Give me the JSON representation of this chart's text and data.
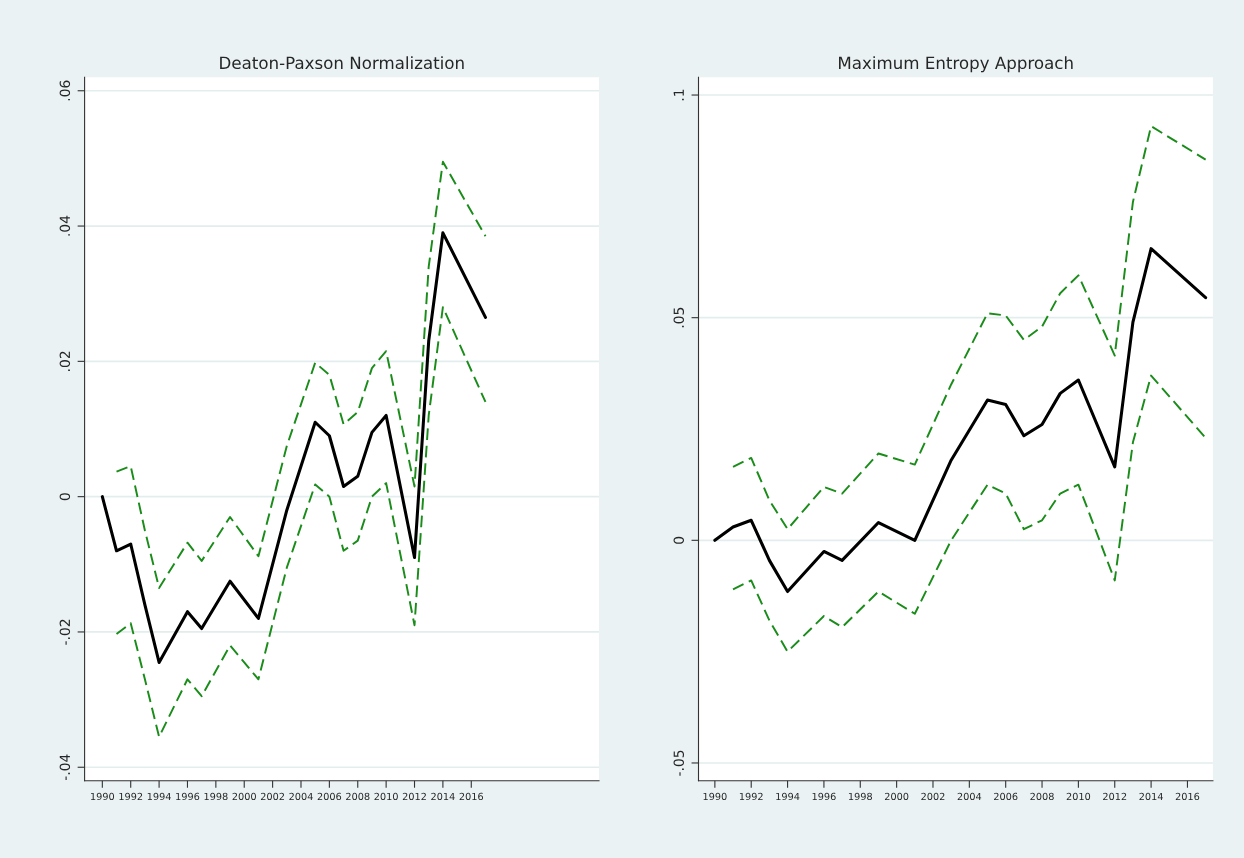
{
  "chart_data": [
    {
      "type": "line",
      "title": "Deaton-Paxson Normalization",
      "xlim": [
        1988.75,
        2025
      ],
      "xticks": [
        1990,
        1992,
        1994,
        1996,
        1998,
        2000,
        2002,
        2004,
        2006,
        2008,
        2010,
        2012,
        2014,
        2016
      ],
      "ylim": [
        -0.042,
        0.062
      ],
      "yticks": [
        {
          "value": -0.04,
          "label": "-.04"
        },
        {
          "value": -0.02,
          "label": "-.02"
        },
        {
          "value": 0,
          "label": "0"
        },
        {
          "value": 0.02,
          "label": ".02"
        },
        {
          "value": 0.04,
          "label": ".04"
        },
        {
          "value": 0.06,
          "label": ".06"
        }
      ],
      "grid": "y",
      "legend": false,
      "series": [
        {
          "color": "#000000",
          "line_style": "solid",
          "x": [
            1990,
            1991,
            1992,
            1993,
            1994,
            1996,
            1997,
            1999,
            2001,
            2003,
            2005,
            2006,
            2007,
            2008,
            2009,
            2010,
            2012,
            2013,
            2014,
            2017
          ],
          "values": [
            0,
            -0.008,
            -0.007,
            -0.016,
            -0.0245,
            -0.017,
            -0.0195,
            -0.0125,
            -0.018,
            -0.002,
            0.011,
            0.009,
            0.0015,
            0.003,
            0.0095,
            0.012,
            -0.009,
            0.023,
            0.039,
            0.0265
          ]
        },
        {
          "color": "#1a8c1a",
          "line_style": "dashed",
          "x": [
            1991,
            1992,
            1993,
            1994,
            1996,
            1997,
            1999,
            2001,
            2003,
            2005,
            2006,
            2007,
            2008,
            2009,
            2010,
            2012,
            2013,
            2014,
            2017
          ],
          "values": [
            0.0037,
            0.0045,
            -0.005,
            -0.0135,
            -0.0068,
            -0.0095,
            -0.003,
            -0.0088,
            0.0075,
            0.0198,
            0.018,
            0.0107,
            0.0125,
            0.019,
            0.0215,
            0.0015,
            0.034,
            0.0495,
            0.0385
          ]
        },
        {
          "color": "#1a8c1a",
          "line_style": "dashed",
          "x": [
            1991,
            1992,
            1993,
            1994,
            1996,
            1997,
            1999,
            2001,
            2003,
            2005,
            2006,
            2007,
            2008,
            2009,
            2010,
            2012,
            2013,
            2014,
            2017
          ],
          "values": [
            -0.0203,
            -0.0187,
            -0.027,
            -0.0355,
            -0.027,
            -0.0295,
            -0.022,
            -0.027,
            -0.0105,
            0.0018,
            0,
            -0.008,
            -0.0065,
            0,
            0.002,
            -0.019,
            0.012,
            0.028,
            0.014
          ]
        }
      ]
    },
    {
      "type": "line",
      "title": "Maximum Entropy Approach",
      "xlim": [
        1989.1,
        2017.4
      ],
      "xticks": [
        1990,
        1992,
        1994,
        1996,
        1998,
        2000,
        2002,
        2004,
        2006,
        2008,
        2010,
        2012,
        2014,
        2016
      ],
      "ylim": [
        -0.054,
        0.104
      ],
      "yticks": [
        {
          "value": -0.05,
          "label": "-.05"
        },
        {
          "value": 0,
          "label": "0"
        },
        {
          "value": 0.05,
          "label": ".05"
        },
        {
          "value": 0.1,
          "label": ".1"
        }
      ],
      "grid": "y",
      "legend": false,
      "series": [
        {
          "color": "#000000",
          "line_style": "solid",
          "x": [
            1990,
            1991,
            1992,
            1993,
            1994,
            1996,
            1997,
            1999,
            2001,
            2003,
            2005,
            2006,
            2007,
            2008,
            2009,
            2010,
            2012,
            2013,
            2014,
            2017
          ],
          "values": [
            0,
            0.003,
            0.0045,
            -0.0045,
            -0.0115,
            -0.0025,
            -0.0045,
            0.004,
            0,
            0.018,
            0.0315,
            0.0305,
            0.0235,
            0.026,
            0.033,
            0.036,
            0.0165,
            0.049,
            0.0655,
            0.0545
          ]
        },
        {
          "color": "#1a8c1a",
          "line_style": "dashed",
          "x": [
            1991,
            1992,
            1993,
            1994,
            1996,
            1997,
            1999,
            2001,
            2003,
            2005,
            2006,
            2007,
            2008,
            2009,
            2010,
            2012,
            2013,
            2014,
            2017
          ],
          "values": [
            0.0165,
            0.0185,
            0.009,
            0.0025,
            0.012,
            0.0105,
            0.0195,
            0.017,
            0.035,
            0.051,
            0.0505,
            0.045,
            0.048,
            0.0555,
            0.0595,
            0.0415,
            0.076,
            0.093,
            0.0855
          ]
        },
        {
          "color": "#1a8c1a",
          "line_style": "dashed",
          "x": [
            1991,
            1992,
            1993,
            1994,
            1996,
            1997,
            1999,
            2001,
            2003,
            2005,
            2006,
            2007,
            2008,
            2009,
            2010,
            2012,
            2013,
            2014,
            2017
          ],
          "values": [
            -0.011,
            -0.009,
            -0.018,
            -0.025,
            -0.017,
            -0.0195,
            -0.0115,
            -0.0165,
            0,
            0.0125,
            0.0105,
            0.0025,
            0.0045,
            0.0105,
            0.0125,
            -0.009,
            0.022,
            0.037,
            0.023
          ]
        }
      ]
    }
  ]
}
